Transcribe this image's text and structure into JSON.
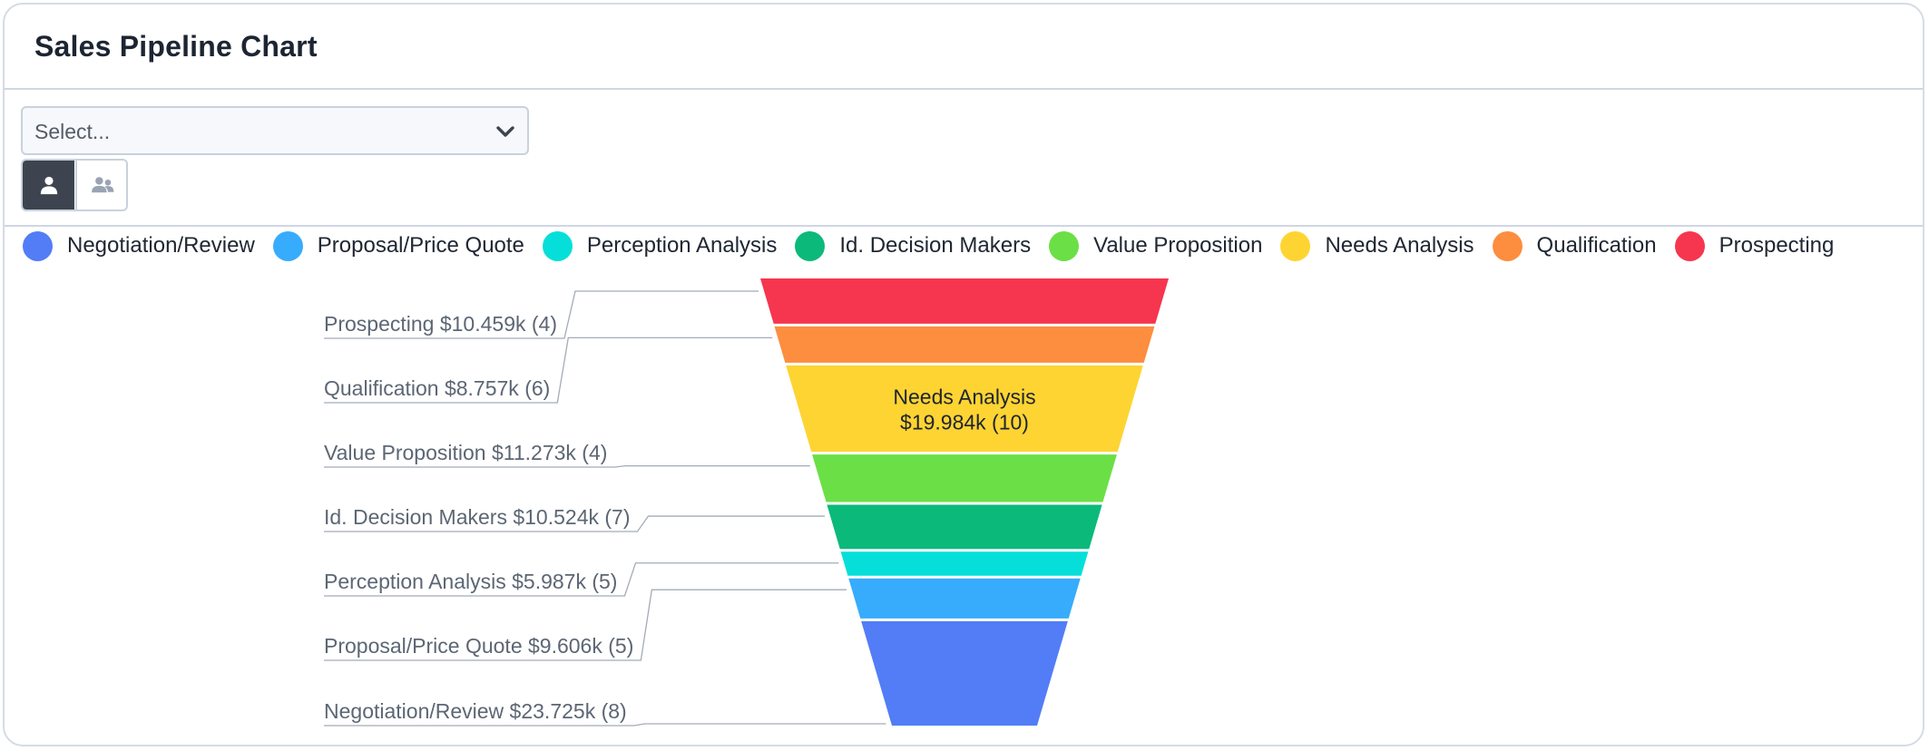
{
  "header": {
    "title": "Sales Pipeline Chart"
  },
  "controls": {
    "select_placeholder": "Select...",
    "toggle_single_icon": "user-icon",
    "toggle_team_icon": "users-icon"
  },
  "chart_data": {
    "type": "funnel",
    "legend_position": "top",
    "stages": [
      {
        "name": "Prospecting",
        "amount": "$10.459k",
        "count": 4,
        "value": 10.459,
        "color": "#f5364e",
        "label": "Prospecting $10.459k (4)"
      },
      {
        "name": "Qualification",
        "amount": "$8.757k",
        "count": 6,
        "value": 8.757,
        "color": "#fd8d3f",
        "label": "Qualification $8.757k (6)"
      },
      {
        "name": "Needs Analysis",
        "amount": "$19.984k",
        "count": 10,
        "value": 19.984,
        "color": "#fed432",
        "label": "$19.984k (10)"
      },
      {
        "name": "Value Proposition",
        "amount": "$11.273k",
        "count": 4,
        "value": 11.273,
        "color": "#6bdf46",
        "label": "Value Proposition $11.273k (4)"
      },
      {
        "name": "Id. Decision Makers",
        "amount": "$10.524k",
        "count": 7,
        "value": 10.524,
        "color": "#0bb97b",
        "label": "Id. Decision Makers $10.524k (7)"
      },
      {
        "name": "Perception Analysis",
        "amount": "$5.987k",
        "count": 5,
        "value": 5.987,
        "color": "#06dfd9",
        "label": "Perception Analysis $5.987k (5)"
      },
      {
        "name": "Proposal/Price Quote",
        "amount": "$9.606k",
        "count": 5,
        "value": 9.606,
        "color": "#37acfc",
        "label": "Proposal/Price Quote $9.606k (5)"
      },
      {
        "name": "Negotiation/Review",
        "amount": "$23.725k",
        "count": 8,
        "value": 23.725,
        "color": "#527df7",
        "label": "Negotiation/Review $23.725k (8)"
      }
    ],
    "legend": [
      {
        "label": "Negotiation/Review",
        "color": "#527df7"
      },
      {
        "label": "Proposal/Price Quote",
        "color": "#37acfc"
      },
      {
        "label": "Perception Analysis",
        "color": "#06dfd9"
      },
      {
        "label": "Id. Decision Makers",
        "color": "#0bb97b"
      },
      {
        "label": "Value Proposition",
        "color": "#6bdf46"
      },
      {
        "label": "Needs Analysis",
        "color": "#fed432"
      },
      {
        "label": "Qualification",
        "color": "#fd8d3f"
      },
      {
        "label": "Prospecting",
        "color": "#f5364e"
      }
    ]
  }
}
